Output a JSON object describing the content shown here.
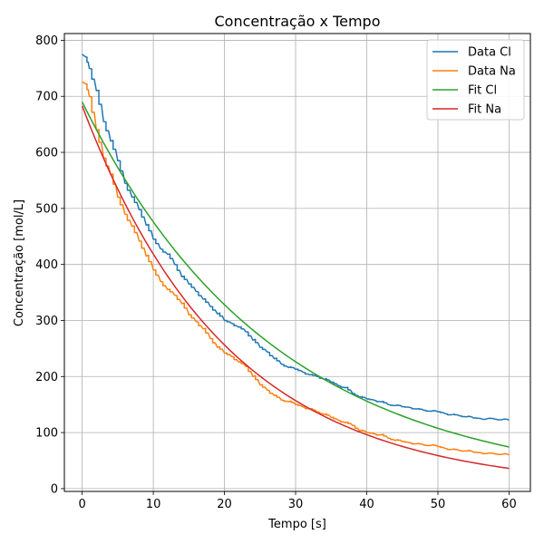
{
  "chart_data": {
    "type": "line",
    "title": "Concentração x Tempo",
    "xlabel": "Tempo [s]",
    "ylabel": "Concentração [mol/L]",
    "xlim": [
      -2.5,
      63
    ],
    "ylim": [
      -5,
      812
    ],
    "xticks": [
      0,
      10,
      20,
      30,
      40,
      50,
      60
    ],
    "yticks": [
      0,
      100,
      200,
      300,
      400,
      500,
      600,
      700,
      800
    ],
    "grid": true,
    "legend_position": "top-right",
    "series": [
      {
        "name": "Data Cl",
        "color": "#1f77b4",
        "style": "step",
        "x": [
          0,
          0.5,
          1,
          2,
          3,
          4,
          5,
          6,
          7,
          8,
          9,
          10,
          11,
          12,
          13,
          14,
          15,
          16,
          17,
          18,
          19,
          20,
          21,
          22,
          23,
          24,
          25,
          26,
          27,
          28,
          29,
          30,
          31,
          32,
          33,
          34,
          35,
          36,
          37,
          38,
          39,
          40,
          41,
          42,
          43,
          44,
          45,
          46,
          47,
          48,
          49,
          50,
          51,
          52,
          53,
          54,
          55,
          56,
          57,
          58,
          59,
          60
        ],
        "y": [
          775,
          770,
          750,
          710,
          655,
          620,
          585,
          545,
          520,
          498,
          470,
          445,
          428,
          418,
          400,
          378,
          365,
          352,
          338,
          325,
          312,
          300,
          295,
          288,
          280,
          265,
          252,
          244,
          232,
          222,
          216,
          213,
          208,
          203,
          200,
          195,
          190,
          184,
          180,
          170,
          163,
          160,
          158,
          155,
          150,
          148,
          146,
          145,
          142,
          140,
          138,
          137,
          134,
          132,
          130,
          128,
          126,
          125,
          125,
          124,
          123,
          122
        ]
      },
      {
        "name": "Data Na",
        "color": "#ff7f0e",
        "style": "step",
        "x": [
          0,
          0.5,
          1,
          2,
          3,
          4,
          5,
          6,
          7,
          8,
          9,
          10,
          11,
          12,
          13,
          14,
          15,
          16,
          17,
          18,
          19,
          20,
          21,
          22,
          23,
          24,
          25,
          26,
          27,
          28,
          29,
          30,
          31,
          32,
          33,
          34,
          35,
          36,
          37,
          38,
          39,
          40,
          41,
          42,
          43,
          44,
          45,
          46,
          47,
          48,
          49,
          50,
          51,
          52,
          53,
          54,
          55,
          56,
          57,
          58,
          59,
          60
        ],
        "y": [
          726,
          722,
          700,
          640,
          590,
          560,
          520,
          490,
          468,
          442,
          415,
          390,
          370,
          355,
          345,
          330,
          310,
          298,
          285,
          268,
          252,
          242,
          236,
          226,
          218,
          200,
          185,
          176,
          166,
          158,
          155,
          150,
          146,
          142,
          137,
          132,
          127,
          122,
          118,
          113,
          103,
          100,
          98,
          96,
          90,
          86,
          84,
          82,
          80,
          78,
          77,
          75,
          72,
          70,
          68,
          67,
          65,
          64,
          63,
          62,
          61,
          60
        ]
      },
      {
        "name": "Fit Cl",
        "color": "#2ca02c",
        "style": "smooth",
        "fit": {
          "a": 690,
          "k": 0.03715
        }
      },
      {
        "name": "Fit Na",
        "color": "#d62728",
        "style": "smooth",
        "fit": {
          "a": 683,
          "k": 0.049
        }
      }
    ]
  }
}
